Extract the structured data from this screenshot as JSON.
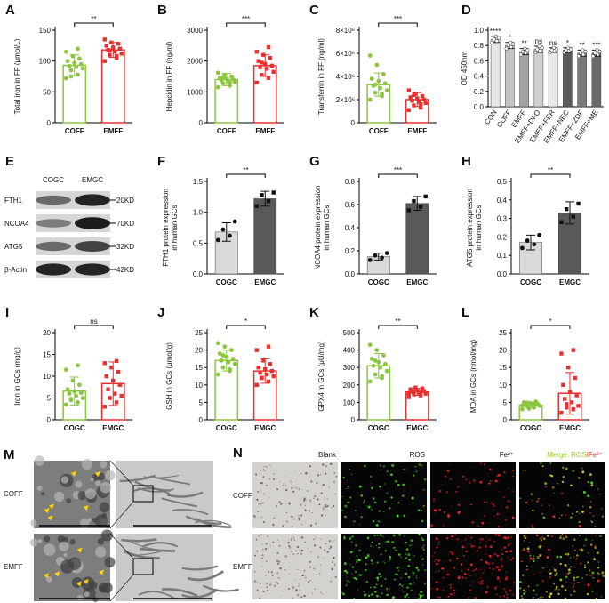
{
  "chart_data": [
    {
      "type": "bar",
      "panel": "A",
      "ylabel": "Total iron in FF (μmol/L)",
      "categories": [
        "COFF",
        "EMFF"
      ],
      "values": [
        93,
        118
      ],
      "errors": [
        17,
        12
      ],
      "points": [
        [
          72,
          78,
          85,
          88,
          90,
          92,
          95,
          97,
          100,
          104,
          108,
          115,
          120,
          75
        ],
        [
          100,
          105,
          110,
          112,
          115,
          118,
          120,
          122,
          125,
          128,
          130,
          135,
          108,
          117
        ]
      ],
      "colors": [
        "#8cc63f",
        "#e8312f"
      ],
      "filled": false,
      "markers": [
        "circle",
        "square"
      ],
      "ylim": [
        0,
        150
      ],
      "yticks": [
        0,
        50,
        100,
        150
      ],
      "significance": "**"
    },
    {
      "type": "bar",
      "panel": "B",
      "ylabel": "Hepcidin in FF (ng/ml)",
      "categories": [
        "COFF",
        "EMFF"
      ],
      "values": [
        1400,
        1850
      ],
      "errors": [
        200,
        350
      ],
      "points": [
        [
          1150,
          1200,
          1280,
          1320,
          1350,
          1380,
          1400,
          1420,
          1450,
          1500,
          1550,
          1620,
          1300,
          1480
        ],
        [
          1300,
          1450,
          1550,
          1650,
          1750,
          1800,
          1850,
          1900,
          2000,
          2100,
          2200,
          2300,
          2450,
          1950
        ]
      ],
      "colors": [
        "#8cc63f",
        "#e8312f"
      ],
      "filled": false,
      "markers": [
        "circle",
        "square"
      ],
      "ylim": [
        0,
        3000
      ],
      "yticks": [
        0,
        1000,
        2000,
        3000
      ],
      "significance": "***"
    },
    {
      "type": "bar",
      "panel": "C",
      "ylabel": "Transferrin in FF (ng/ml)",
      "categories": [
        "COFF",
        "EMFF"
      ],
      "values": [
        3300000,
        2000000
      ],
      "errors": [
        1000000,
        600000
      ],
      "points": [
        [
          2000000,
          2300000,
          2600000,
          2800000,
          3000000,
          3200000,
          3400000,
          3600000,
          3800000,
          4200000,
          5000000,
          5800000,
          2500000,
          3300000
        ],
        [
          1100000,
          1300000,
          1500000,
          1700000,
          1800000,
          1900000,
          2000000,
          2100000,
          2200000,
          2300000,
          2500000,
          2800000,
          1600000,
          2400000
        ]
      ],
      "colors": [
        "#8cc63f",
        "#e8312f"
      ],
      "filled": false,
      "markers": [
        "circle",
        "square"
      ],
      "ylim": [
        0,
        8000000
      ],
      "yticks": [
        0,
        {
          "value": 2000000,
          "label": "2×10⁶"
        },
        {
          "value": 4000000,
          "label": "4×10⁶"
        },
        {
          "value": 6000000,
          "label": "6×10⁶"
        },
        {
          "value": 8000000,
          "label": "8×10⁶"
        }
      ],
      "significance": "***"
    },
    {
      "type": "bar",
      "panel": "D",
      "ylabel": "OD 450nm",
      "categories": [
        "CON",
        "COFF",
        "EMFF",
        "EMFF+DFO",
        "EMFF+FER",
        "EMFF+NEC",
        "EMFF+ZDF",
        "EMFF+ME"
      ],
      "values": [
        0.88,
        0.8,
        0.72,
        0.75,
        0.74,
        0.74,
        0.7,
        0.7
      ],
      "errors": [
        0.04,
        0.04,
        0.04,
        0.04,
        0.03,
        0.03,
        0.04,
        0.04
      ],
      "points": [
        [
          0.84,
          0.86,
          0.88,
          0.9,
          0.92
        ],
        [
          0.76,
          0.78,
          0.8,
          0.82,
          0.84
        ],
        [
          0.68,
          0.7,
          0.72,
          0.74,
          0.76
        ],
        [
          0.71,
          0.73,
          0.75,
          0.77,
          0.79
        ],
        [
          0.71,
          0.73,
          0.74,
          0.75,
          0.77
        ],
        [
          0.71,
          0.73,
          0.74,
          0.75,
          0.77
        ],
        [
          0.66,
          0.68,
          0.7,
          0.72,
          0.74
        ],
        [
          0.66,
          0.68,
          0.7,
          0.72,
          0.74
        ]
      ],
      "colors": [
        "#e6e6e6",
        "#c4c4c4",
        "#a3a3a3",
        "#cfcfcf",
        "#e9e9e9",
        "#5a5a5a",
        "#7a7a7a",
        "#6a6a6a"
      ],
      "filled": true,
      "markers": [
        "circle",
        "circle",
        "circle",
        "circle",
        "circle",
        "circle",
        "circle",
        "circle"
      ],
      "ylim": [
        0,
        1.0
      ],
      "yticks": [
        {
          "value": 0,
          "label": "0.0"
        },
        0.2,
        0.4,
        0.6,
        0.8,
        {
          "value": 1.0,
          "label": "1.0"
        }
      ],
      "bar_labels": [
        "****",
        "*",
        "**",
        "ns",
        "ns",
        "*",
        "**",
        "***"
      ]
    },
    {
      "type": "bar",
      "panel": "F",
      "ylabel": [
        "FTH1 protein expression",
        "in human GCs"
      ],
      "categories": [
        "COGC",
        "EMGC"
      ],
      "values": [
        0.68,
        1.22
      ],
      "errors": [
        0.15,
        0.12
      ],
      "points": [
        [
          0.55,
          0.62,
          0.72,
          0.85
        ],
        [
          1.1,
          1.18,
          1.28,
          1.32
        ]
      ],
      "colors": [
        "#d9d9d9",
        "#595959"
      ],
      "filled": true,
      "markers": [
        "circle",
        "square"
      ],
      "ylim": [
        0,
        1.5
      ],
      "yticks": [
        {
          "value": 0,
          "label": "0.0"
        },
        0.5,
        {
          "value": 1.0,
          "label": "1.0"
        },
        1.5
      ],
      "significance": "**"
    },
    {
      "type": "bar",
      "panel": "G",
      "ylabel": [
        "NCOA4 protein expression",
        "in human GCs"
      ],
      "categories": [
        "COGC",
        "EMGC"
      ],
      "values": [
        0.15,
        0.61
      ],
      "errors": [
        0.03,
        0.06
      ],
      "points": [
        [
          0.12,
          0.14,
          0.16,
          0.18
        ],
        [
          0.55,
          0.58,
          0.63,
          0.67
        ]
      ],
      "colors": [
        "#d9d9d9",
        "#595959"
      ],
      "filled": true,
      "markers": [
        "circle",
        "square"
      ],
      "ylim": [
        0,
        0.8
      ],
      "yticks": [
        {
          "value": 0,
          "label": "0.0"
        },
        0.2,
        0.4,
        0.6,
        0.8
      ],
      "significance": "***"
    },
    {
      "type": "bar",
      "panel": "H",
      "ylabel": [
        "ATG5 protein expression",
        "in human GCs"
      ],
      "categories": [
        "COGC",
        "EMGC"
      ],
      "values": [
        0.17,
        0.33
      ],
      "errors": [
        0.04,
        0.06
      ],
      "points": [
        [
          0.14,
          0.16,
          0.18,
          0.21
        ],
        [
          0.28,
          0.31,
          0.35,
          0.38
        ]
      ],
      "colors": [
        "#d9d9d9",
        "#595959"
      ],
      "filled": true,
      "markers": [
        "circle",
        "square"
      ],
      "ylim": [
        0,
        0.5
      ],
      "yticks": [
        {
          "value": 0,
          "label": "0.0"
        },
        0.1,
        0.2,
        0.3,
        0.4,
        0.5
      ],
      "significance": "**"
    },
    {
      "type": "bar",
      "panel": "I",
      "ylabel": "Iron in GCs (mg/g)",
      "categories": [
        "COGC",
        "EMGC"
      ],
      "values": [
        6.6,
        8.3
      ],
      "errors": [
        3.2,
        5
      ],
      "points": [
        [
          3.5,
          4,
          4.5,
          5,
          5.5,
          6,
          6.2,
          6.5,
          7,
          8,
          9,
          11.5,
          12.5,
          4.8
        ],
        [
          3,
          4,
          5,
          5.5,
          6,
          7,
          8,
          9,
          10,
          11,
          12,
          13,
          13.5,
          5
        ]
      ],
      "colors": [
        "#8cc63f",
        "#e8312f"
      ],
      "filled": false,
      "markers": [
        "circle",
        "square"
      ],
      "ylim": [
        0,
        20
      ],
      "yticks": [
        0,
        5,
        10,
        15,
        20
      ],
      "significance": "ns"
    },
    {
      "type": "bar",
      "panel": "J",
      "ylabel": "GSH in GCs (μmol/g)",
      "categories": [
        "COGC",
        "EMGC"
      ],
      "values": [
        17,
        14
      ],
      "errors": [
        3,
        3.5
      ],
      "points": [
        [
          13,
          14,
          15,
          16,
          16.5,
          17,
          17.5,
          18,
          19,
          20,
          21,
          22,
          14.5,
          18.5
        ],
        [
          10,
          11,
          12,
          12.5,
          13,
          13.5,
          14,
          14.5,
          15,
          16,
          17,
          20,
          21,
          12
        ]
      ],
      "colors": [
        "#8cc63f",
        "#e8312f"
      ],
      "filled": false,
      "markers": [
        "circle",
        "square"
      ],
      "ylim": [
        0,
        25
      ],
      "yticks": [
        0,
        5,
        10,
        15,
        20,
        25
      ],
      "significance": "*"
    },
    {
      "type": "bar",
      "panel": "K",
      "ylabel": "GPX4 in GCs (μU/mg)",
      "categories": [
        "COGC",
        "EMGC"
      ],
      "values": [
        310,
        160
      ],
      "errors": [
        70,
        20
      ],
      "points": [
        [
          220,
          240,
          260,
          280,
          300,
          310,
          320,
          330,
          350,
          370,
          400,
          430,
          250,
          340
        ],
        [
          130,
          140,
          145,
          150,
          155,
          160,
          165,
          170,
          175,
          180,
          185,
          150,
          158,
          162
        ]
      ],
      "colors": [
        "#8cc63f",
        "#e8312f"
      ],
      "filled": false,
      "markers": [
        "circle",
        "square"
      ],
      "ylim": [
        0,
        500
      ],
      "yticks": [
        0,
        100,
        200,
        300,
        400,
        500
      ],
      "significance": "**"
    },
    {
      "type": "bar",
      "panel": "L",
      "ylabel": "MDA in GCs (nmol/mg)",
      "categories": [
        "COGC",
        "EMGC"
      ],
      "values": [
        4.2,
        7.6
      ],
      "errors": [
        0.8,
        6
      ],
      "points": [
        [
          3,
          3.5,
          3.8,
          4,
          4.2,
          4.4,
          4.6,
          4.8,
          5,
          5.2,
          3.2,
          4.1,
          4.5,
          4.9
        ],
        [
          2,
          3,
          3.5,
          4,
          5,
          6,
          7,
          8,
          10,
          12,
          15,
          19,
          20,
          4.5
        ]
      ],
      "colors": [
        "#8cc63f",
        "#e8312f"
      ],
      "filled": false,
      "markers": [
        "circle",
        "square"
      ],
      "ylim": [
        0,
        25
      ],
      "yticks": [
        0,
        5,
        10,
        15,
        20,
        25
      ],
      "significance": "*"
    }
  ],
  "blot": {
    "panel": "E",
    "lanes": [
      "COGC",
      "EMGC"
    ],
    "rows": [
      {
        "protein": "FTH1",
        "size": "20KD"
      },
      {
        "protein": "NCOA4",
        "size": "70KD"
      },
      {
        "protein": "ATG5",
        "size": "32KD"
      },
      {
        "protein": "β-Actin",
        "size": "42KD"
      }
    ]
  },
  "tem": {
    "panel": "M",
    "rows": [
      "COFF",
      "EMFF"
    ]
  },
  "fluorescence": {
    "panel": "N",
    "rows": [
      "COFF",
      "EMFF"
    ],
    "columns": [
      "Blank",
      "ROS",
      "Fe²⁺"
    ],
    "merge_label": [
      "Merge: ROS",
      "/Fe²⁺"
    ]
  }
}
